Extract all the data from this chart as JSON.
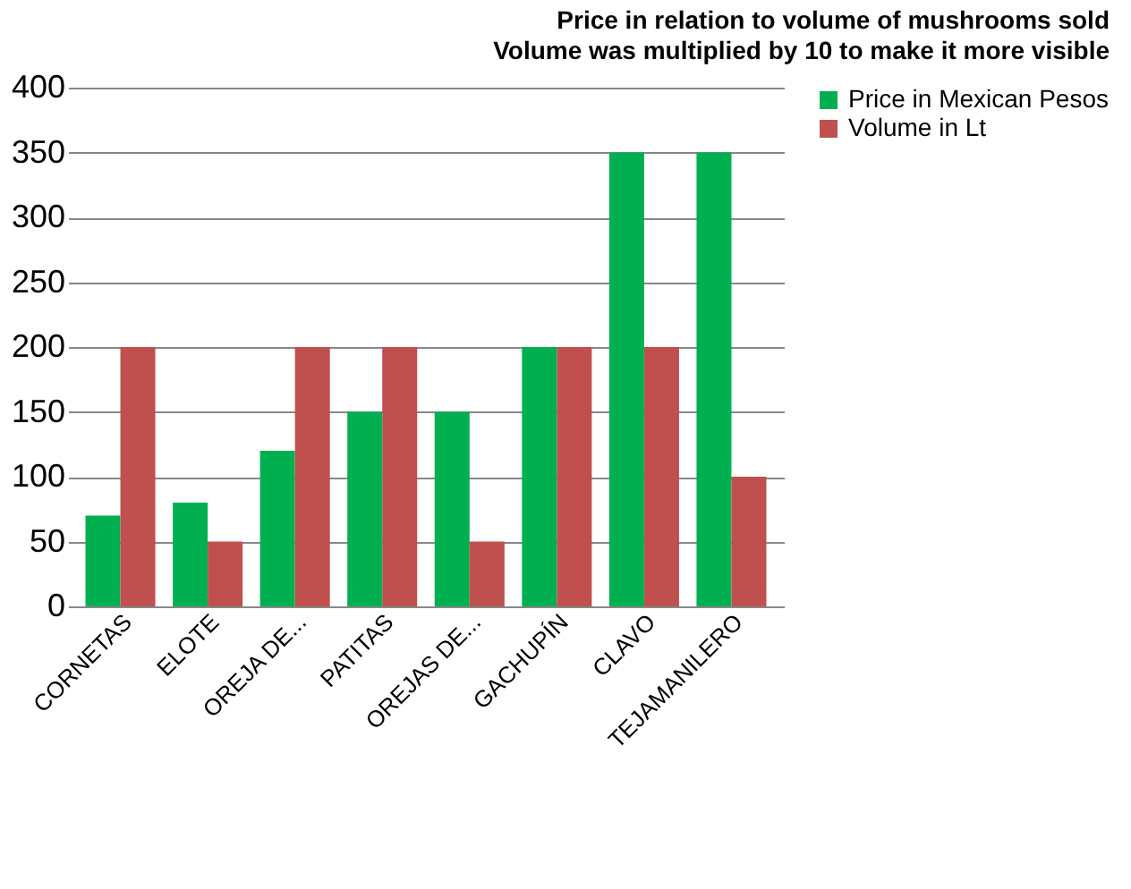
{
  "chart_data": {
    "type": "bar",
    "title": "Price in relation to volume of mushrooms sold",
    "subtitle": "Volume was multiplied by 10 to make it more visible",
    "categories": [
      "CORNETAS",
      "ELOTE",
      "OREJA DE...",
      "PATITAS",
      "OREJAS DE...",
      "GACHUPÍN",
      "CLAVO",
      "TEJAMANILERO"
    ],
    "series": [
      {
        "name": "Price in Mexican Pesos",
        "color": "#00b050",
        "values": [
          70,
          80,
          120,
          150,
          150,
          200,
          350,
          350
        ]
      },
      {
        "name": "Volume in Lt",
        "color": "#c0504d",
        "values": [
          200,
          50,
          200,
          200,
          50,
          200,
          200,
          100
        ]
      }
    ],
    "ylim": [
      0,
      400
    ],
    "yticks": [
      0,
      50,
      100,
      150,
      200,
      250,
      300,
      350,
      400
    ],
    "grid": "y",
    "legend": "right"
  }
}
